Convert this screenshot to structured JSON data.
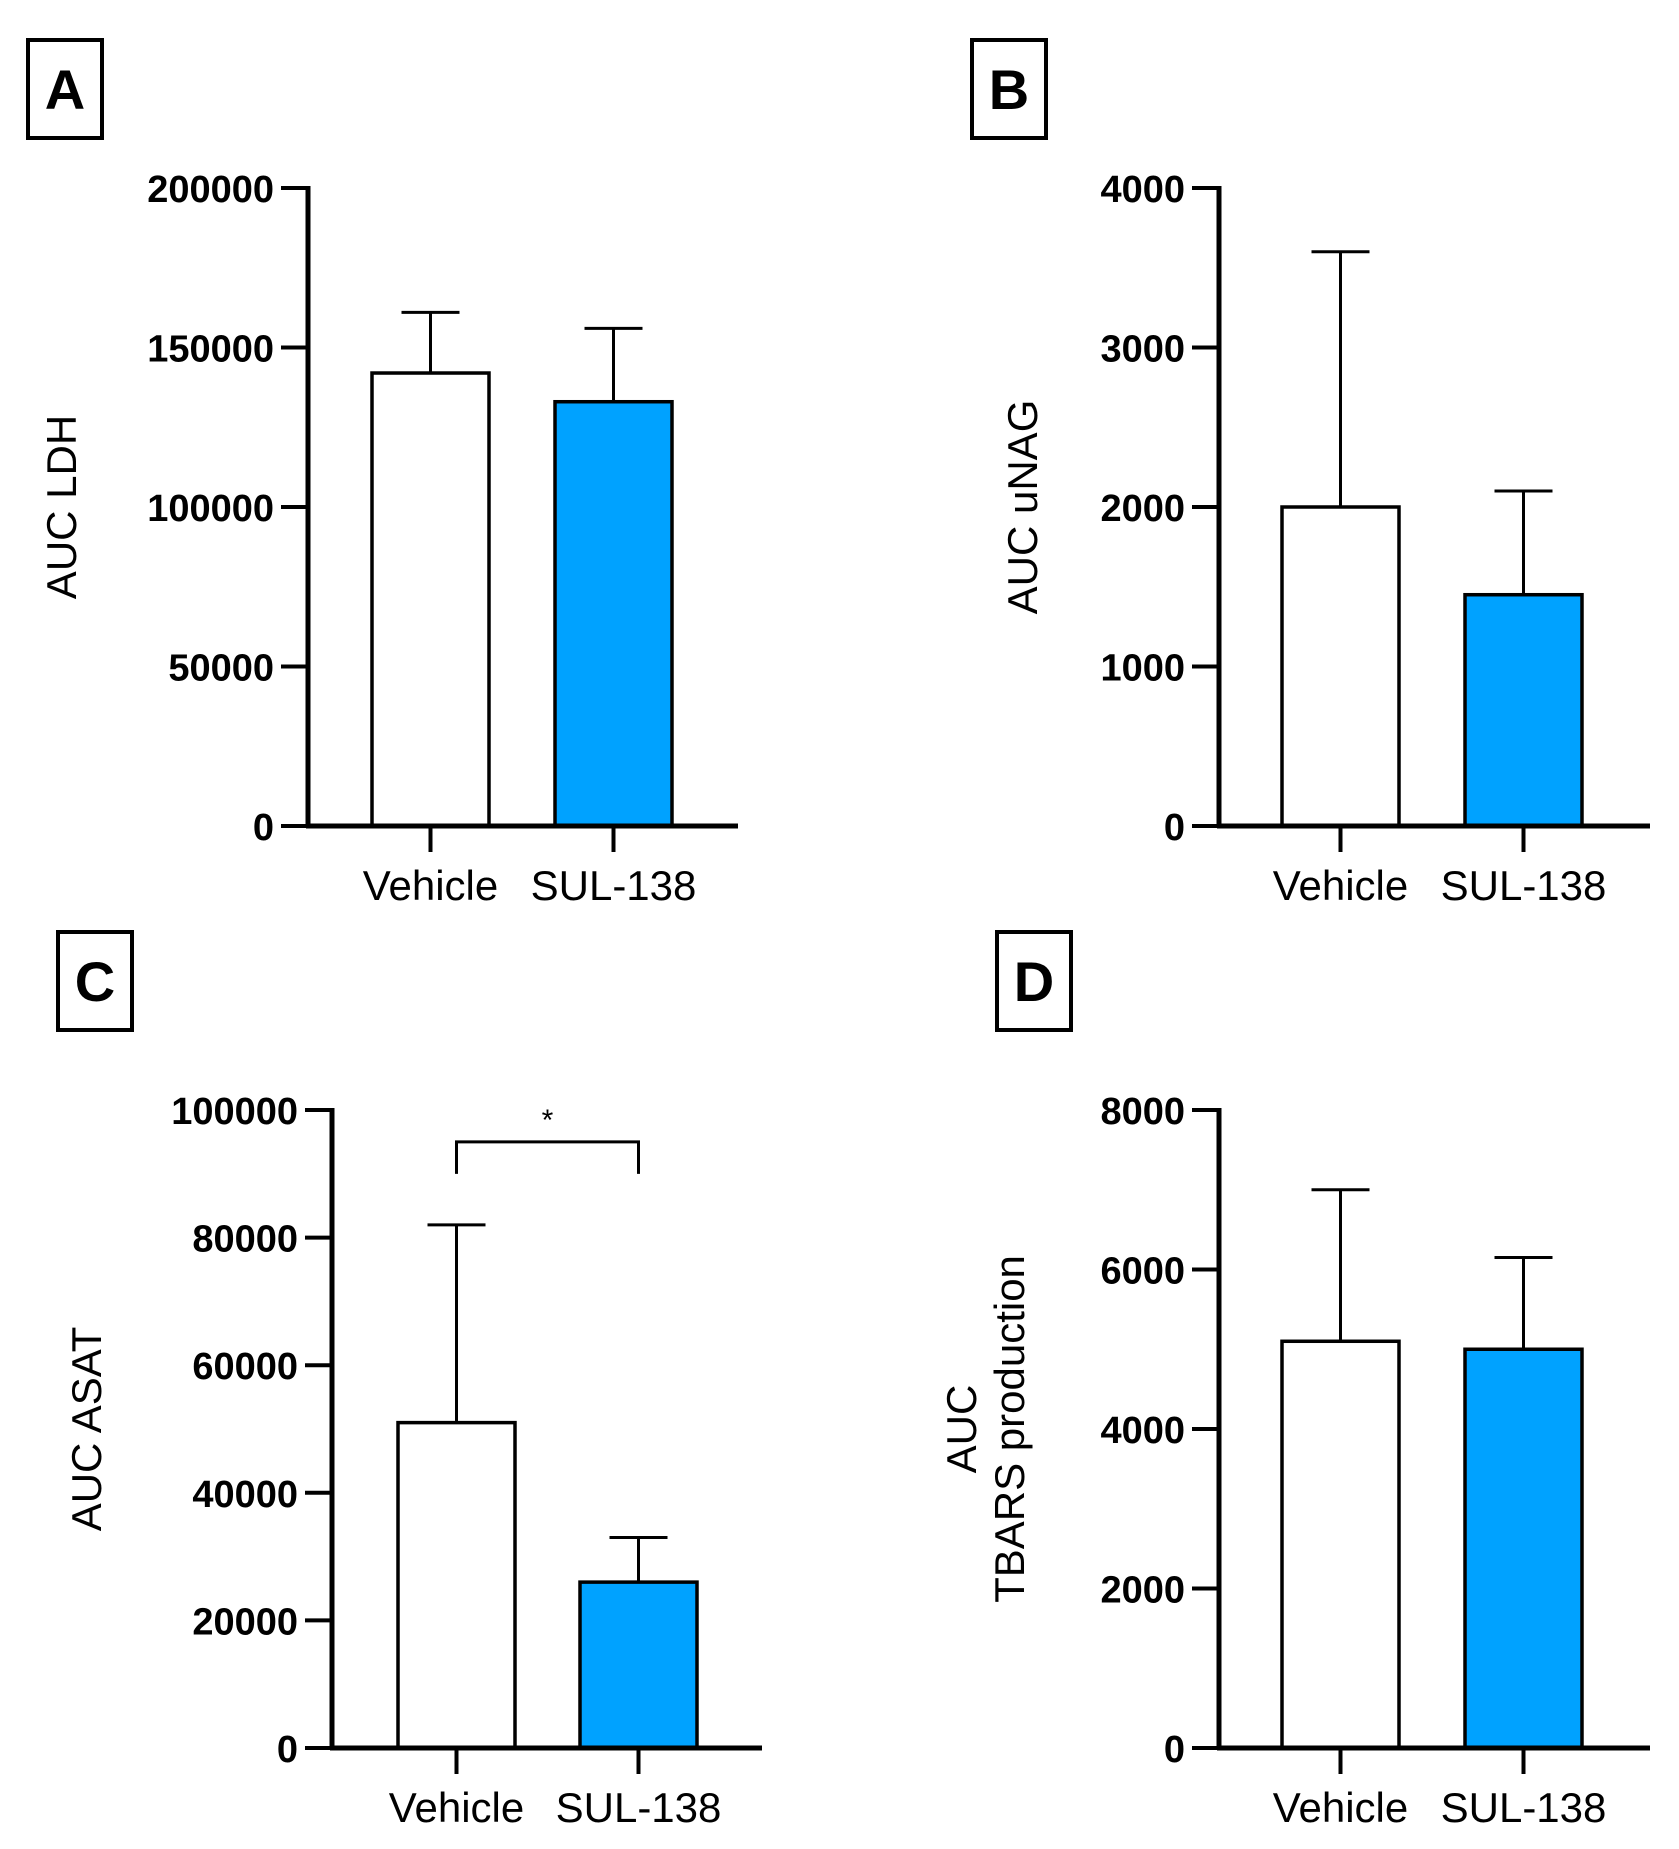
{
  "chart_data": [
    {
      "panel": "A",
      "type": "bar",
      "categories": [
        "Vehicle",
        "SUL-138"
      ],
      "values": [
        142000,
        133000
      ],
      "errors": [
        19000,
        23000
      ],
      "ylabel": [
        "AUC LDH"
      ],
      "ylim": [
        0,
        200000
      ],
      "yticks": [
        0,
        50000,
        100000,
        150000,
        200000
      ],
      "colors": [
        "#ffffff",
        "#00a2ff"
      ],
      "significance": null
    },
    {
      "panel": "B",
      "type": "bar",
      "categories": [
        "Vehicle",
        "SUL-138"
      ],
      "values": [
        2000,
        1450
      ],
      "errors": [
        1600,
        650
      ],
      "ylabel": [
        "AUC uNAG"
      ],
      "ylim": [
        0,
        4000
      ],
      "yticks": [
        0,
        1000,
        2000,
        3000,
        4000
      ],
      "colors": [
        "#ffffff",
        "#00a2ff"
      ],
      "significance": null
    },
    {
      "panel": "C",
      "type": "bar",
      "categories": [
        "Vehicle",
        "SUL-138"
      ],
      "values": [
        51000,
        26000
      ],
      "errors": [
        31000,
        7000
      ],
      "ylabel": [
        "AUC ASAT"
      ],
      "ylim": [
        0,
        100000
      ],
      "yticks": [
        0,
        20000,
        40000,
        60000,
        80000,
        100000
      ],
      "colors": [
        "#ffffff",
        "#00a2ff"
      ],
      "significance": {
        "label": "*",
        "y": 95000
      }
    },
    {
      "panel": "D",
      "type": "bar",
      "categories": [
        "Vehicle",
        "SUL-138"
      ],
      "values": [
        5100,
        5000
      ],
      "errors": [
        1900,
        1150
      ],
      "ylabel": [
        "AUC",
        "TBARS production"
      ],
      "ylim": [
        0,
        8000
      ],
      "yticks": [
        0,
        2000,
        4000,
        6000,
        8000
      ],
      "colors": [
        "#ffffff",
        "#00a2ff"
      ],
      "significance": null
    }
  ]
}
